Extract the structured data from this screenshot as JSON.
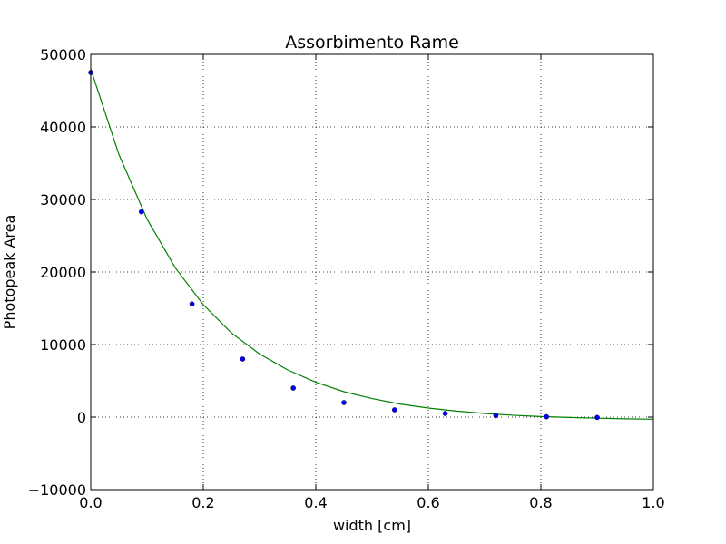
{
  "chart_data": {
    "type": "scatter",
    "title": "Assorbimento Rame",
    "xlabel": "width [cm]",
    "ylabel": "Photopeak Area",
    "xlim": [
      0.0,
      1.0
    ],
    "ylim": [
      -10000,
      50000
    ],
    "xticks": [
      "0.0",
      "0.2",
      "0.4",
      "0.6",
      "0.8",
      "1.0"
    ],
    "yticks": [
      "−10000",
      "0",
      "10000",
      "20000",
      "30000",
      "40000",
      "50000"
    ],
    "grid": true,
    "series": [
      {
        "kind": "points",
        "color": "#0000ff",
        "x": [
          0.0,
          0.09,
          0.18,
          0.27,
          0.36,
          0.45,
          0.54,
          0.63,
          0.72,
          0.81,
          0.9
        ],
        "y": [
          47500,
          28300,
          15600,
          8000,
          4000,
          2000,
          1000,
          500,
          200,
          50,
          -50
        ]
      },
      {
        "kind": "fit-line",
        "color": "#008000",
        "x": [
          0.0,
          0.05,
          0.1,
          0.15,
          0.2,
          0.25,
          0.3,
          0.35,
          0.4,
          0.45,
          0.5,
          0.55,
          0.6,
          0.65,
          0.7,
          0.75,
          0.8,
          0.85,
          0.9,
          0.95,
          1.0
        ],
        "y": [
          48000,
          36200,
          27300,
          20600,
          15500,
          11600,
          8700,
          6500,
          4800,
          3500,
          2550,
          1800,
          1250,
          830,
          500,
          260,
          80,
          -50,
          -150,
          -230,
          -290
        ]
      }
    ]
  }
}
